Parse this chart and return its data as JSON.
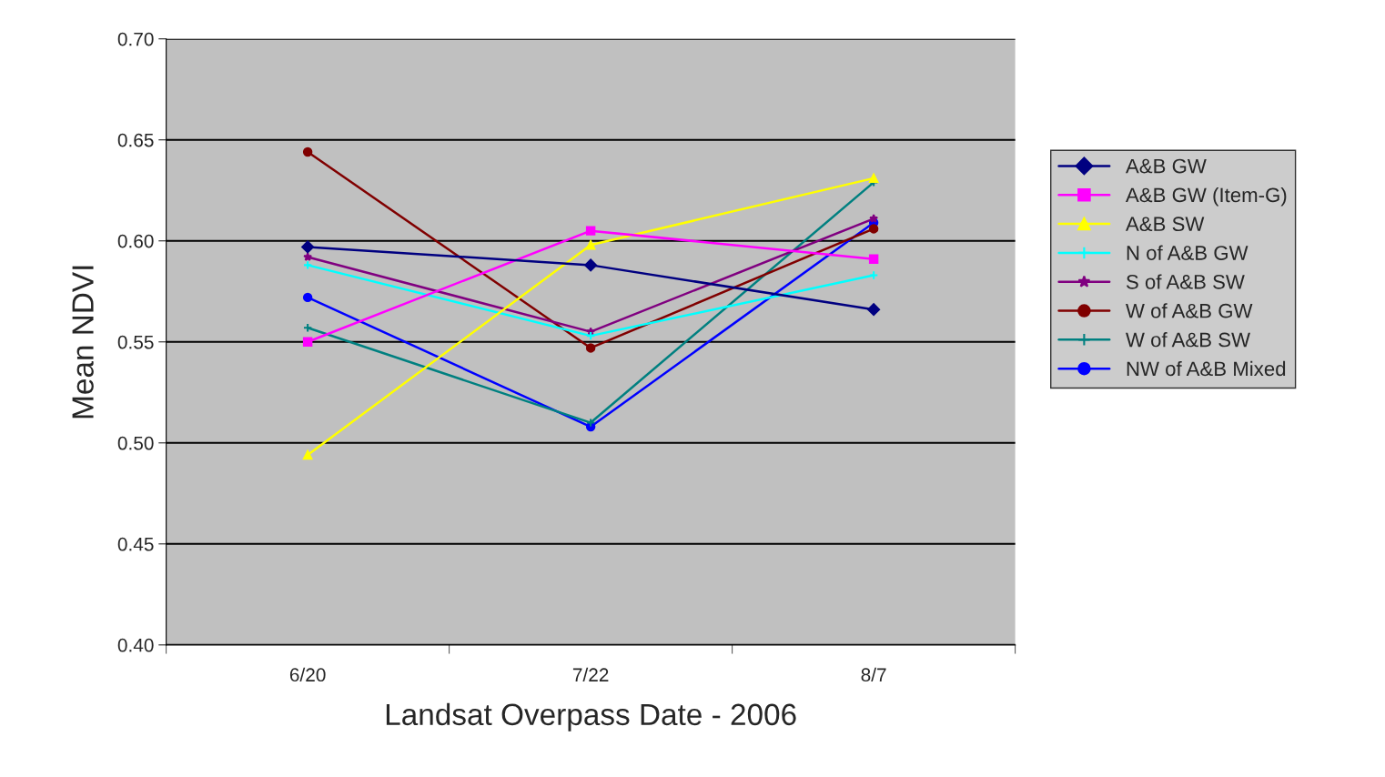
{
  "chart_data": {
    "type": "line",
    "xlabel": "Landsat Overpass Date - 2006",
    "ylabel": "Mean NDVI",
    "categories": [
      "6/20",
      "7/22",
      "8/7"
    ],
    "ylim": [
      0.4,
      0.7
    ],
    "yticks": [
      {
        "value": 0.4,
        "label": "0.40"
      },
      {
        "value": 0.45,
        "label": "0.45"
      },
      {
        "value": 0.5,
        "label": "0.50"
      },
      {
        "value": 0.55,
        "label": "0.55"
      },
      {
        "value": 0.6,
        "label": "0.60"
      },
      {
        "value": 0.65,
        "label": "0.65"
      },
      {
        "value": 0.7,
        "label": "0.70"
      }
    ],
    "grid": "y",
    "legend": "right",
    "line_style": "solid",
    "series": [
      {
        "name": "A&B GW",
        "color": "#000080",
        "marker": "diamond",
        "values": [
          0.597,
          0.588,
          0.566
        ]
      },
      {
        "name": "A&B GW (Item-G)",
        "color": "#ff00ff",
        "marker": "square",
        "values": [
          0.55,
          0.605,
          0.591
        ]
      },
      {
        "name": "A&B SW",
        "color": "#ffff00",
        "marker": "triangle",
        "values": [
          0.494,
          0.598,
          0.631
        ]
      },
      {
        "name": "N of A&B GW",
        "color": "#00ffff",
        "marker": "cross",
        "values": [
          0.588,
          0.553,
          0.583
        ]
      },
      {
        "name": "S of A&B SW",
        "color": "#800080",
        "marker": "star",
        "values": [
          0.592,
          0.555,
          0.611
        ]
      },
      {
        "name": "W of A&B GW",
        "color": "#800000",
        "marker": "circle",
        "values": [
          0.644,
          0.547,
          0.606
        ]
      },
      {
        "name": "W of A&B SW",
        "color": "#008080",
        "marker": "cross",
        "values": [
          0.557,
          0.51,
          0.629
        ]
      },
      {
        "name": "NW of A&B Mixed",
        "color": "#0000ff",
        "marker": "circle",
        "values": [
          0.572,
          0.508,
          0.609
        ]
      }
    ]
  }
}
